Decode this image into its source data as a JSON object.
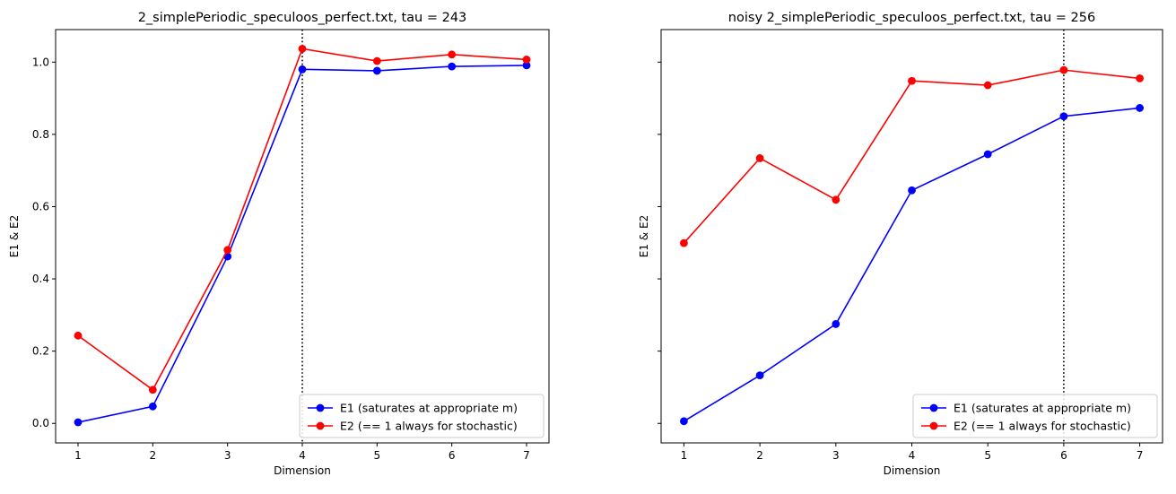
{
  "chart_data": [
    {
      "type": "line",
      "title": "2_simplePeriodic_speculoos_perfect.txt, tau = 243",
      "xlabel": "Dimension",
      "ylabel": "E1 & E2",
      "x": [
        1,
        2,
        3,
        4,
        5,
        6,
        7
      ],
      "xlim": [
        0.7,
        7.3
      ],
      "ylim": [
        -0.054,
        1.09
      ],
      "xticks": [
        "1",
        "2",
        "3",
        "4",
        "5",
        "6",
        "7"
      ],
      "yticks": [
        "0.0",
        "0.2",
        "0.4",
        "0.6",
        "0.8",
        "1.0"
      ],
      "show_yticklabels": true,
      "vline_x": 4,
      "grid": false,
      "legend_position": "lower-right",
      "series": [
        {
          "name": "E1 (saturates at appropriate m)",
          "color": "#0000ff",
          "values": [
            0.003,
            0.047,
            0.462,
            0.98,
            0.976,
            0.988,
            0.991
          ]
        },
        {
          "name": "E2 (== 1 always for stochastic)",
          "color": "#ff0000",
          "values": [
            0.243,
            0.093,
            0.48,
            1.037,
            1.003,
            1.021,
            1.007
          ]
        }
      ]
    },
    {
      "type": "line",
      "title": "noisy 2_simplePeriodic_speculoos_perfect.txt, tau = 256",
      "xlabel": "Dimension",
      "ylabel": "E1 & E2",
      "x": [
        1,
        2,
        3,
        4,
        5,
        6,
        7
      ],
      "xlim": [
        0.7,
        7.3
      ],
      "ylim": [
        -0.054,
        1.09
      ],
      "xticks": [
        "1",
        "2",
        "3",
        "4",
        "5",
        "6",
        "7"
      ],
      "yticks": [
        "0.0",
        "0.2",
        "0.4",
        "0.6",
        "0.8",
        "1.0"
      ],
      "show_yticklabels": false,
      "vline_x": 6,
      "grid": false,
      "legend_position": "lower-right",
      "series": [
        {
          "name": "E1 (saturates at appropriate m)",
          "color": "#0000ff",
          "values": [
            0.006,
            0.133,
            0.275,
            0.645,
            0.745,
            0.85,
            0.873
          ]
        },
        {
          "name": "E2 (== 1 always for stochastic)",
          "color": "#ff0000",
          "values": [
            0.499,
            0.734,
            0.619,
            0.948,
            0.936,
            0.978,
            0.955
          ]
        }
      ]
    }
  ]
}
